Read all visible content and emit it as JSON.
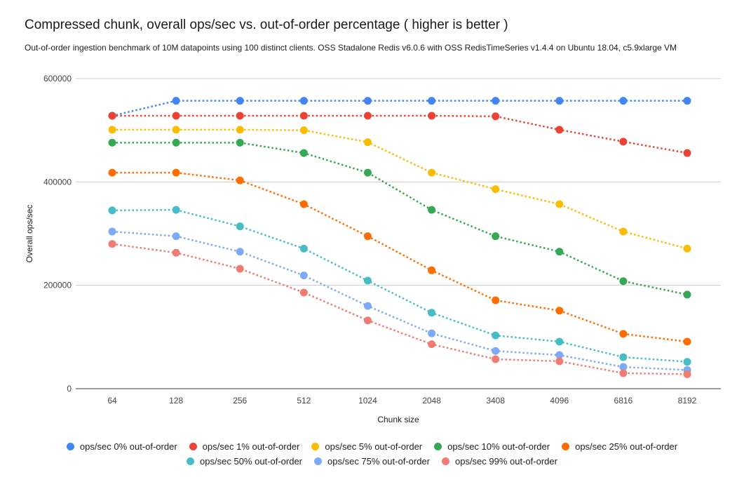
{
  "chart_data": {
    "type": "line",
    "line_style": "dotted",
    "marker": "circle",
    "title": "Compressed chunk, overall ops/sec vs. out-of-order percentage ( higher is better )",
    "subtitle": "Out-of-order ingestion benchmark of 10M datapoints using 100 distinct clients. OSS Stadalone Redis v6.0.6 with OSS RedisTimeSeries v1.4.4 on Ubuntu 18.04, c5.9xlarge VM",
    "xlabel": "Chunk size",
    "ylabel": "Overall ops/sec",
    "categories": [
      "64",
      "128",
      "256",
      "512",
      "1024",
      "2048",
      "3408",
      "4096",
      "6816",
      "8192"
    ],
    "ylim": [
      0,
      600000
    ],
    "yticks": [
      0,
      200000,
      400000,
      600000
    ],
    "ytick_labels": [
      "0",
      "200000",
      "400000",
      "600000"
    ],
    "grid": true,
    "gridline_color": "#cccccc",
    "axis_line_color": "#333333",
    "legend_position": "bottom",
    "legend_rows": [
      5,
      3
    ],
    "series": [
      {
        "name": "ops/sec 0% out-of-order",
        "color": "#4285F4",
        "values": [
          528000,
          557000,
          557000,
          557000,
          557000,
          557000,
          557000,
          557000,
          557000,
          557000
        ]
      },
      {
        "name": "ops/sec 1% out-of-order",
        "color": "#EA4335",
        "values": [
          528000,
          528000,
          528000,
          528000,
          528000,
          528000,
          527000,
          501000,
          478000,
          456000
        ]
      },
      {
        "name": "ops/sec 5% out-of-order",
        "color": "#FBBC04",
        "values": [
          501000,
          501000,
          501000,
          500000,
          477000,
          418000,
          386000,
          357000,
          304000,
          271000
        ]
      },
      {
        "name": "ops/sec 10% out-of-order",
        "color": "#34A853",
        "values": [
          476000,
          476000,
          476000,
          456000,
          418000,
          346000,
          295000,
          265000,
          208000,
          182000
        ]
      },
      {
        "name": "ops/sec 25% out-of-order",
        "color": "#FF6D01",
        "values": [
          418000,
          418000,
          403000,
          357000,
          295000,
          229000,
          171000,
          151000,
          106000,
          91000
        ]
      },
      {
        "name": "ops/sec 50% out-of-order",
        "color": "#46BDC6",
        "values": [
          345000,
          346000,
          314000,
          271000,
          209000,
          147000,
          103000,
          91000,
          61000,
          52000
        ]
      },
      {
        "name": "ops/sec 75% out-of-order",
        "color": "#7BAAF7",
        "values": [
          304000,
          295000,
          265000,
          219000,
          160000,
          107000,
          73000,
          65000,
          42000,
          36000
        ]
      },
      {
        "name": "ops/sec 99% out-of-order",
        "color": "#F07B72",
        "values": [
          280000,
          263000,
          232000,
          186000,
          132000,
          86000,
          57000,
          53000,
          30000,
          28000
        ]
      }
    ]
  }
}
